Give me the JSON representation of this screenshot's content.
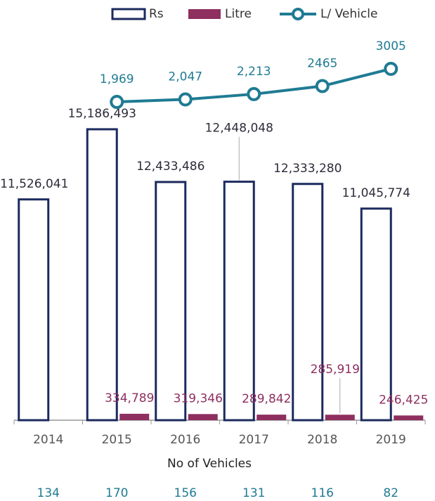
{
  "chart_data": {
    "type": "bar",
    "categories": [
      "2014",
      "2015",
      "2016",
      "2017",
      "2018",
      "2019"
    ],
    "series": [
      {
        "name": "Rs",
        "color": "#1b2a5e",
        "values": [
          11526041,
          15186493,
          12433486,
          12448048,
          12333280,
          11045774
        ],
        "value_labels": [
          "11,526,041",
          "15,186,493",
          "12,433,486",
          "12,448,048",
          "12,333,280",
          "11,045,774"
        ]
      },
      {
        "name": "Litre",
        "color": "#8e2f60",
        "values": [
          null,
          334789,
          319346,
          289842,
          285919,
          246425
        ],
        "value_labels": [
          null,
          "334,789",
          "319,346",
          "289,842",
          "285,919",
          "246,425"
        ]
      },
      {
        "name": "L/ Vehicle",
        "color": "#1f7b93",
        "type": "line",
        "axis": "y2",
        "values": [
          null,
          1969,
          2047,
          2213,
          2465,
          3005
        ],
        "value_labels": [
          null,
          "1,969",
          "2,047",
          "2,213",
          "2465",
          "3005"
        ]
      }
    ],
    "ylim": [
      0,
      19000000
    ],
    "y2lim": [
      -8000,
      3400
    ],
    "vehicles": {
      "label": "No of Vehicles",
      "values": [
        134,
        170,
        156,
        131,
        116,
        82
      ]
    },
    "legend": "top"
  }
}
